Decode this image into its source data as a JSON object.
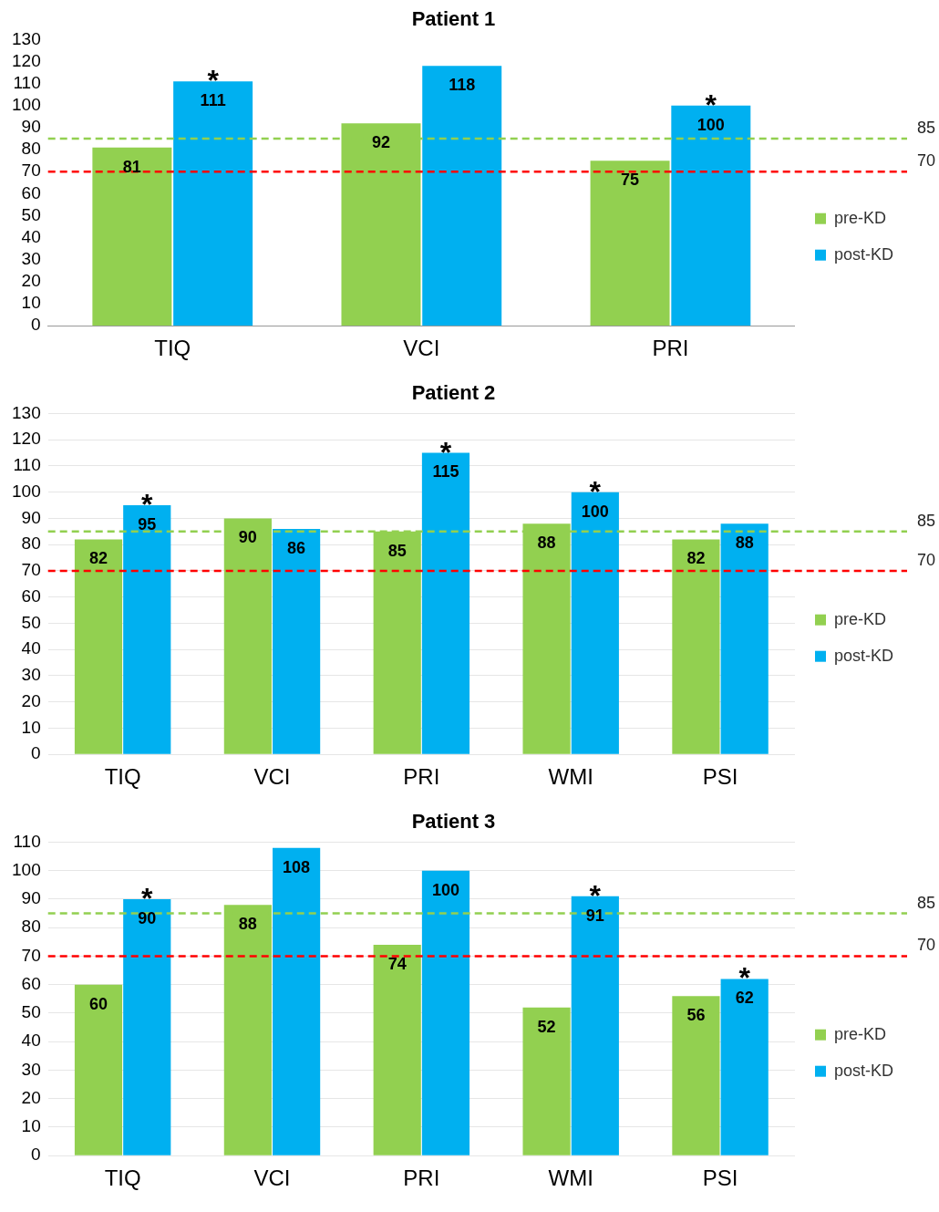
{
  "chart_data": [
    {
      "type": "bar",
      "title": "Patient 1",
      "categories": [
        "TIQ",
        "VCI",
        "PRI"
      ],
      "series": [
        {
          "name": "pre-KD",
          "color": "#92d050",
          "values": [
            81,
            92,
            75
          ]
        },
        {
          "name": "post-KD",
          "color": "#00b0f0",
          "values": [
            111,
            118,
            100
          ]
        }
      ],
      "ylim": [
        0,
        130
      ],
      "yticks": [
        0,
        10,
        20,
        30,
        40,
        50,
        60,
        70,
        80,
        90,
        100,
        110,
        120,
        130
      ],
      "grid": false,
      "legend": "right",
      "data_labels": true,
      "ref_lines": [
        {
          "axis": "y",
          "value": 85,
          "label": "85",
          "color": "#92d050",
          "line_style": "dashed"
        },
        {
          "axis": "y",
          "value": 70,
          "label": "70",
          "color": "#ff0000",
          "line_style": "dashed"
        }
      ],
      "annotations": [
        {
          "text": "*",
          "x": "TIQ",
          "y": 111
        },
        {
          "text": "*",
          "x": "PRI",
          "y": 100
        }
      ]
    },
    {
      "type": "bar",
      "title": "Patient 2",
      "categories": [
        "TIQ",
        "VCI",
        "PRI",
        "WMI",
        "PSI"
      ],
      "series": [
        {
          "name": "pre-KD",
          "color": "#92d050",
          "values": [
            82,
            90,
            85,
            88,
            82
          ]
        },
        {
          "name": "post-KD",
          "color": "#00b0f0",
          "values": [
            95,
            86,
            115,
            100,
            88
          ]
        }
      ],
      "ylim": [
        0,
        130
      ],
      "yticks": [
        0,
        10,
        20,
        30,
        40,
        50,
        60,
        70,
        80,
        90,
        100,
        110,
        120,
        130
      ],
      "grid": "y",
      "legend": "right",
      "data_labels": true,
      "ref_lines": [
        {
          "axis": "y",
          "value": 85,
          "label": "85",
          "color": "#92d050",
          "line_style": "dashed"
        },
        {
          "axis": "y",
          "value": 70,
          "label": "70",
          "color": "#ff0000",
          "line_style": "dashed"
        }
      ],
      "annotations": [
        {
          "text": "*",
          "x": "TIQ",
          "y": 95
        },
        {
          "text": "*",
          "x": "PRI",
          "y": 115
        },
        {
          "text": "*",
          "x": "WMI",
          "y": 100
        }
      ]
    },
    {
      "type": "bar",
      "title": "Patient 3",
      "categories": [
        "TIQ",
        "VCI",
        "PRI",
        "WMI",
        "PSI"
      ],
      "series": [
        {
          "name": "pre-KD",
          "color": "#92d050",
          "values": [
            60,
            88,
            74,
            52,
            56
          ]
        },
        {
          "name": "post-KD",
          "color": "#00b0f0",
          "values": [
            90,
            108,
            100,
            91,
            62
          ]
        }
      ],
      "ylim": [
        0,
        110
      ],
      "yticks": [
        0,
        10,
        20,
        30,
        40,
        50,
        60,
        70,
        80,
        90,
        100,
        110
      ],
      "grid": "y",
      "legend": "right",
      "data_labels": true,
      "ref_lines": [
        {
          "axis": "y",
          "value": 85,
          "label": "85",
          "color": "#92d050",
          "line_style": "dashed"
        },
        {
          "axis": "y",
          "value": 70,
          "label": "70",
          "color": "#ff0000",
          "line_style": "dashed"
        }
      ],
      "annotations": [
        {
          "text": "*",
          "x": "TIQ",
          "y": 90
        },
        {
          "text": "*",
          "x": "WMI",
          "y": 91
        },
        {
          "text": "*",
          "x": "PSI",
          "y": 62
        }
      ]
    }
  ]
}
